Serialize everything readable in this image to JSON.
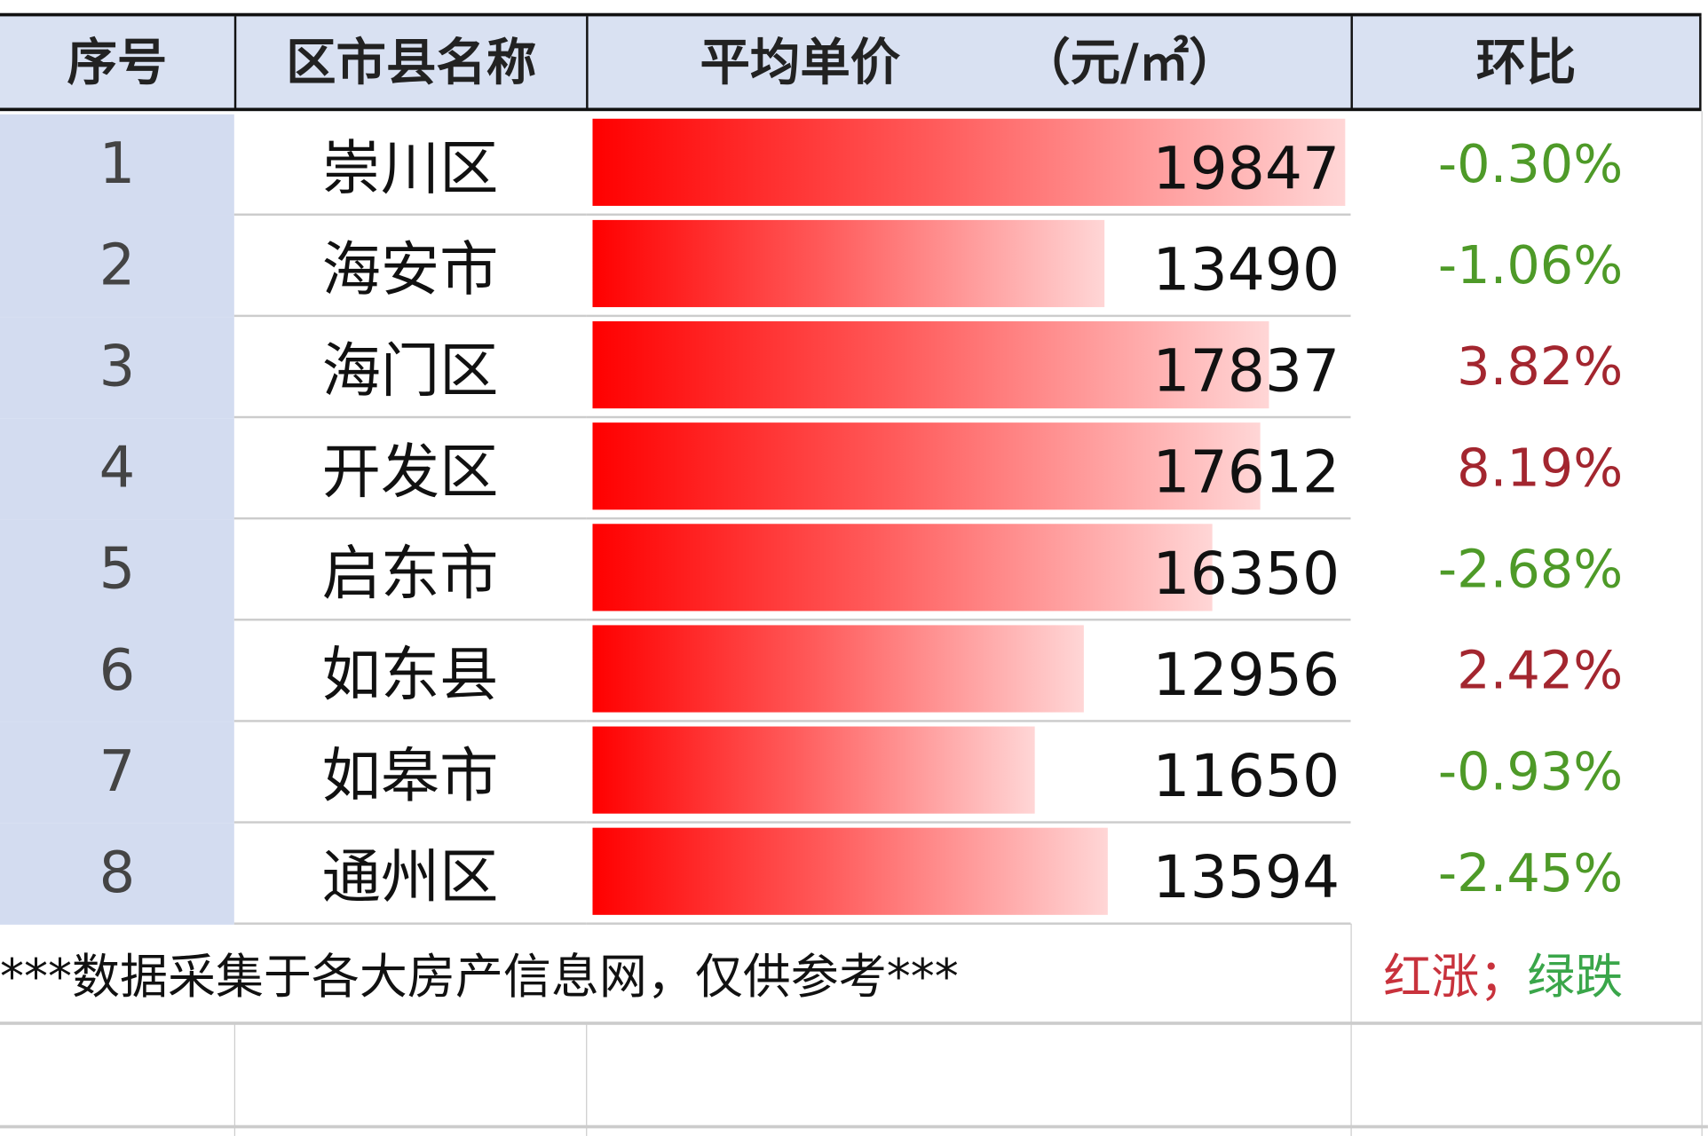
{
  "header": {
    "index": "序号",
    "name": "区市县名称",
    "price": "平均单价",
    "unit": "（元/㎡）",
    "change": "环比"
  },
  "colors": {
    "up": "#a3262f",
    "down": "#4e9a28",
    "bar": "#ff0000",
    "header_bg": "#d9e1f2"
  },
  "rows": [
    {
      "index": "1",
      "name": "崇川区",
      "price": 19847,
      "change": "-0.30%",
      "dir": "down"
    },
    {
      "index": "2",
      "name": "海安市",
      "price": 13490,
      "change": "-1.06%",
      "dir": "down"
    },
    {
      "index": "3",
      "name": "海门区",
      "price": 17837,
      "change": "3.82%",
      "dir": "up"
    },
    {
      "index": "4",
      "name": "开发区",
      "price": 17612,
      "change": "8.19%",
      "dir": "up"
    },
    {
      "index": "5",
      "name": "启东市",
      "price": 16350,
      "change": "-2.68%",
      "dir": "down"
    },
    {
      "index": "6",
      "name": "如东县",
      "price": 12956,
      "change": "2.42%",
      "dir": "up"
    },
    {
      "index": "7",
      "name": "如皋市",
      "price": 11650,
      "change": "-0.93%",
      "dir": "down"
    },
    {
      "index": "8",
      "name": "通州区",
      "price": 13594,
      "change": "-2.45%",
      "dir": "down"
    }
  ],
  "footer": {
    "note": "***数据采集于各大房产信息网，仅供参考***",
    "legend_up": "红涨；",
    "legend_down": "绿跌"
  }
}
